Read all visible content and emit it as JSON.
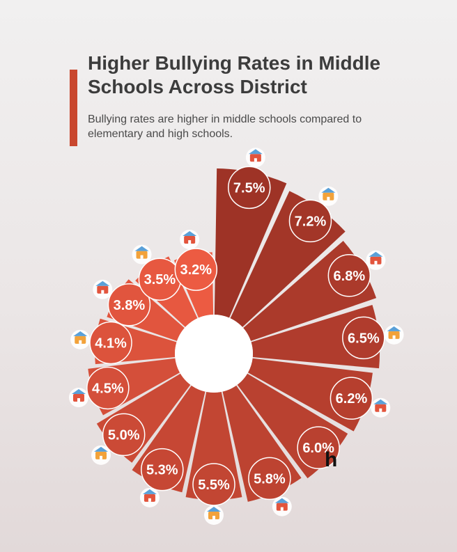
{
  "header": {
    "title": "Higher Bullying Rates in Middle Schools Across District",
    "subtitle": "Bullying rates are higher in middle schools compared to elementary and high schools."
  },
  "brand": {
    "mark": "h"
  },
  "colors": {
    "accent": "#c9472e",
    "bar_darkest": "#9e3326",
    "bar_lightest": "#ec5b42",
    "center": "#ffffff"
  },
  "chart_data": {
    "type": "radial-bar",
    "title": "Higher Bullying Rates in Middle Schools Across District",
    "unit": "%",
    "values": [
      7.5,
      7.2,
      6.8,
      6.5,
      6.2,
      6.0,
      5.8,
      5.5,
      5.3,
      5.0,
      4.5,
      4.1,
      3.8,
      3.5,
      3.2
    ],
    "labels": [
      "7.5%",
      "7.2%",
      "6.8%",
      "6.5%",
      "6.2%",
      "6.0%",
      "5.8%",
      "5.5%",
      "5.3%",
      "5.0%",
      "4.5%",
      "4.1%",
      "3.8%",
      "3.5%",
      "3.2%"
    ],
    "icons": [
      "school-bus-icon",
      "student-reading-icon",
      "school-campus-icon",
      "student-backpack-icon",
      "school-globe-icon",
      "blank-icon",
      "graduate-icon",
      "school-building-icon",
      "award-ribbon-icon",
      "school-house-icon",
      "school-red-icon",
      "school-yellow-icon",
      "school-green-icon",
      "school-faded-icon",
      "city-school-icon"
    ]
  }
}
